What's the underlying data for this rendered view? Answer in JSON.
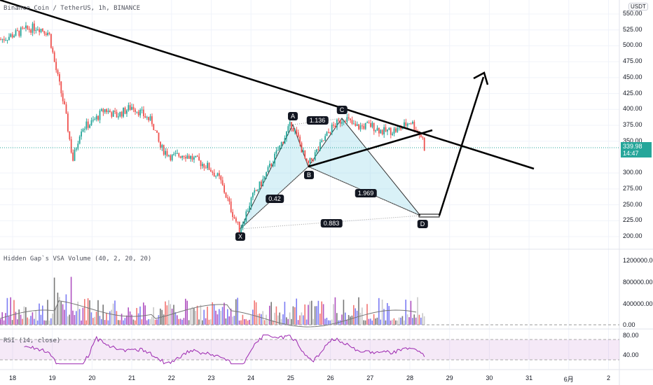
{
  "header": {
    "symbol_title": "Binance Coin / TetherUS, 1h, BINANCE",
    "currency": "USDT"
  },
  "price_axis": [
    "550.00",
    "525.00",
    "500.00",
    "475.00",
    "450.00",
    "425.00",
    "400.00",
    "375.00",
    "350.00",
    "300.00",
    "275.00",
    "250.00",
    "225.00",
    "200.00"
  ],
  "price_axis_values": [
    550,
    525,
    500,
    475,
    450,
    425,
    400,
    375,
    350,
    300,
    275,
    250,
    225,
    200
  ],
  "current_price": {
    "value": "339.98",
    "countdown": "14:47",
    "color": "#26a69a"
  },
  "volume_pane": {
    "title": "Hidden Gap`s VSA Volume (40, 2, 20, 20)",
    "axis": [
      "1200000.00",
      "800000.00",
      "400000.00",
      "0.00"
    ]
  },
  "rsi_pane": {
    "title": "RSI (14, close)",
    "axis": [
      "80.00",
      "40.00"
    ]
  },
  "date_axis": [
    "18",
    "19",
    "20",
    "21",
    "22",
    "23",
    "24",
    "25",
    "26",
    "27",
    "28",
    "29",
    "30",
    "31",
    "6月",
    "2"
  ],
  "pattern": {
    "points": [
      "X",
      "A",
      "B",
      "C",
      "D"
    ],
    "ratios": [
      "0.42",
      "1.136",
      "1.969",
      "0.883"
    ]
  },
  "chart_data": {
    "type": "candlestick",
    "price_path": [
      [
        17.7,
        510
      ],
      [
        18.3,
        525
      ],
      [
        18.6,
        530
      ],
      [
        18.9,
        520
      ],
      [
        19.05,
        470
      ],
      [
        19.3,
        400
      ],
      [
        19.5,
        320
      ],
      [
        19.7,
        370
      ],
      [
        20,
        380
      ],
      [
        20.3,
        400
      ],
      [
        20.6,
        390
      ],
      [
        21,
        405
      ],
      [
        21.3,
        390
      ],
      [
        21.5,
        380
      ],
      [
        21.7,
        340
      ],
      [
        22,
        325
      ],
      [
        22.3,
        330
      ],
      [
        22.6,
        320
      ],
      [
        22.9,
        310
      ],
      [
        23.2,
        290
      ],
      [
        23.5,
        240
      ],
      [
        23.7,
        210
      ],
      [
        24,
        260
      ],
      [
        24.3,
        290
      ],
      [
        24.7,
        340
      ],
      [
        25,
        378
      ],
      [
        25.2,
        350
      ],
      [
        25.4,
        310
      ],
      [
        25.7,
        340
      ],
      [
        26,
        370
      ],
      [
        26.35,
        388
      ],
      [
        26.6,
        372
      ],
      [
        27,
        375
      ],
      [
        27.3,
        365
      ],
      [
        27.7,
        368
      ],
      [
        28,
        382
      ],
      [
        28.3,
        355
      ],
      [
        28.35,
        340
      ]
    ],
    "ylim": [
      200,
      550
    ]
  }
}
